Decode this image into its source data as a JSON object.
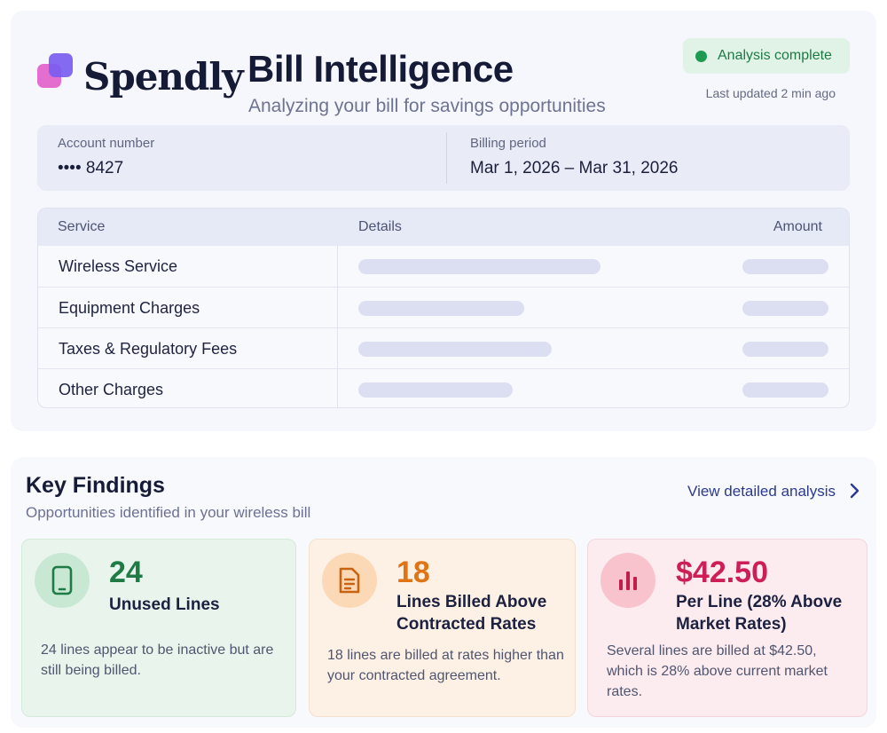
{
  "brand": {
    "name": "Spendly"
  },
  "header": {
    "title": "Bill Intelligence",
    "subtitle": "Analyzing your bill for savings opportunities",
    "status": "Analysis complete",
    "updated": "Last updated 2 min ago"
  },
  "account": {
    "number_label": "Account number",
    "number_value": "•••• 8427",
    "period_label": "Billing period",
    "period_value": "Mar 1, 2026 – Mar 31, 2026"
  },
  "table": {
    "headers": {
      "service": "Service",
      "details": "Details",
      "amount": "Amount"
    },
    "rows": [
      {
        "service": "Wireless Service"
      },
      {
        "service": "Equipment Charges"
      },
      {
        "service": "Taxes & Regulatory Fees"
      },
      {
        "service": "Other Charges"
      }
    ]
  },
  "findings": {
    "title": "Key Findings",
    "subtitle": "Opportunities identified in your wireless bill",
    "link": "View detailed analysis",
    "cards": [
      {
        "value": "24",
        "label": "Unused Lines",
        "desc": "24 lines appear to be inactive but are still being billed.",
        "icon": "phone-icon",
        "color": "#1e7b46"
      },
      {
        "value": "18",
        "label": "Lines Billed Above Contracted Rates",
        "desc": "18 lines are billed at rates higher than your contracted agreement.",
        "icon": "document-icon",
        "color": "#e07415"
      },
      {
        "value": "$42.50",
        "label": "Per Line (28% Above Market Rates)",
        "desc": "Several lines are billed at $42.50, which is 28% above current market rates.",
        "icon": "bar-chart-icon",
        "color": "#cd1f55"
      }
    ]
  }
}
